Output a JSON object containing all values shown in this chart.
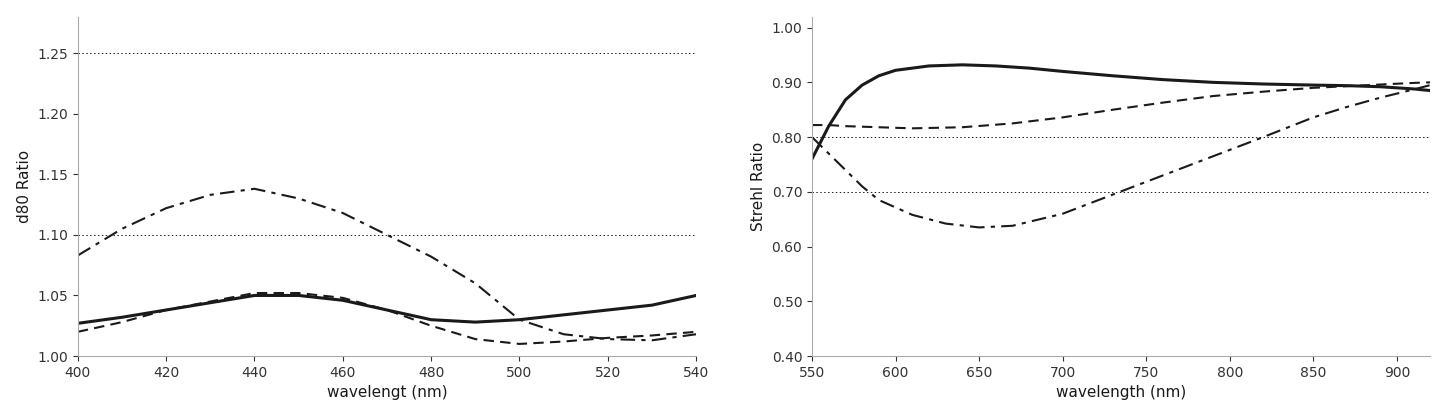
{
  "plot1": {
    "xlabel": "wavelengt (nm)",
    "ylabel": "d80 Ratio",
    "xlim": [
      400,
      540
    ],
    "ylim": [
      1.0,
      1.28
    ],
    "yticks": [
      1.0,
      1.05,
      1.1,
      1.15,
      1.2,
      1.25
    ],
    "xticks": [
      400,
      420,
      440,
      460,
      480,
      500,
      520,
      540
    ],
    "hlines": [
      1.25,
      1.1
    ],
    "solid_x": [
      400,
      410,
      420,
      430,
      440,
      450,
      460,
      470,
      480,
      490,
      500,
      510,
      520,
      530,
      540
    ],
    "solid_y": [
      1.027,
      1.032,
      1.038,
      1.044,
      1.05,
      1.05,
      1.046,
      1.038,
      1.03,
      1.028,
      1.03,
      1.034,
      1.038,
      1.042,
      1.05
    ],
    "dashed_x": [
      400,
      410,
      420,
      430,
      440,
      450,
      460,
      470,
      480,
      490,
      500,
      510,
      520,
      530,
      540
    ],
    "dashed_y": [
      1.02,
      1.028,
      1.038,
      1.045,
      1.052,
      1.052,
      1.048,
      1.038,
      1.025,
      1.014,
      1.01,
      1.012,
      1.015,
      1.017,
      1.02
    ],
    "dashdot_x": [
      400,
      410,
      420,
      430,
      440,
      450,
      460,
      470,
      480,
      490,
      500,
      510,
      520,
      530,
      540
    ],
    "dashdot_y": [
      1.083,
      1.105,
      1.122,
      1.133,
      1.138,
      1.13,
      1.118,
      1.1,
      1.082,
      1.06,
      1.03,
      1.018,
      1.014,
      1.013,
      1.018
    ]
  },
  "plot2": {
    "xlabel": "wavelength (nm)",
    "ylabel": "Strehl Ratio",
    "xlim": [
      550,
      920
    ],
    "ylim": [
      0.4,
      1.02
    ],
    "yticks": [
      0.4,
      0.5,
      0.6,
      0.7,
      0.8,
      0.9,
      1.0
    ],
    "xticks": [
      550,
      600,
      650,
      700,
      750,
      800,
      850,
      900
    ],
    "hlines": [
      0.8,
      0.7
    ],
    "solid_x": [
      550,
      560,
      570,
      580,
      590,
      600,
      620,
      640,
      660,
      680,
      700,
      730,
      760,
      790,
      820,
      850,
      870,
      890,
      910,
      920
    ],
    "solid_y": [
      0.76,
      0.82,
      0.868,
      0.895,
      0.912,
      0.922,
      0.93,
      0.932,
      0.93,
      0.926,
      0.92,
      0.912,
      0.905,
      0.9,
      0.897,
      0.895,
      0.894,
      0.892,
      0.888,
      0.885
    ],
    "dashed_x": [
      550,
      560,
      570,
      590,
      610,
      640,
      670,
      700,
      730,
      760,
      790,
      820,
      850,
      870,
      890,
      910,
      920
    ],
    "dashed_y": [
      0.822,
      0.822,
      0.82,
      0.818,
      0.816,
      0.818,
      0.825,
      0.836,
      0.85,
      0.863,
      0.875,
      0.883,
      0.89,
      0.893,
      0.896,
      0.899,
      0.9
    ],
    "dashdot_x": [
      550,
      560,
      570,
      580,
      590,
      610,
      630,
      650,
      670,
      700,
      730,
      760,
      790,
      820,
      850,
      870,
      890,
      910,
      920
    ],
    "dashdot_y": [
      0.8,
      0.77,
      0.74,
      0.71,
      0.685,
      0.658,
      0.642,
      0.635,
      0.638,
      0.66,
      0.695,
      0.73,
      0.765,
      0.8,
      0.836,
      0.855,
      0.872,
      0.887,
      0.895
    ]
  },
  "line_color": "#1a1a1a",
  "spine_color": "#aaaaaa",
  "bg_color": "#ffffff",
  "font_size": 10,
  "label_fontsize": 11
}
